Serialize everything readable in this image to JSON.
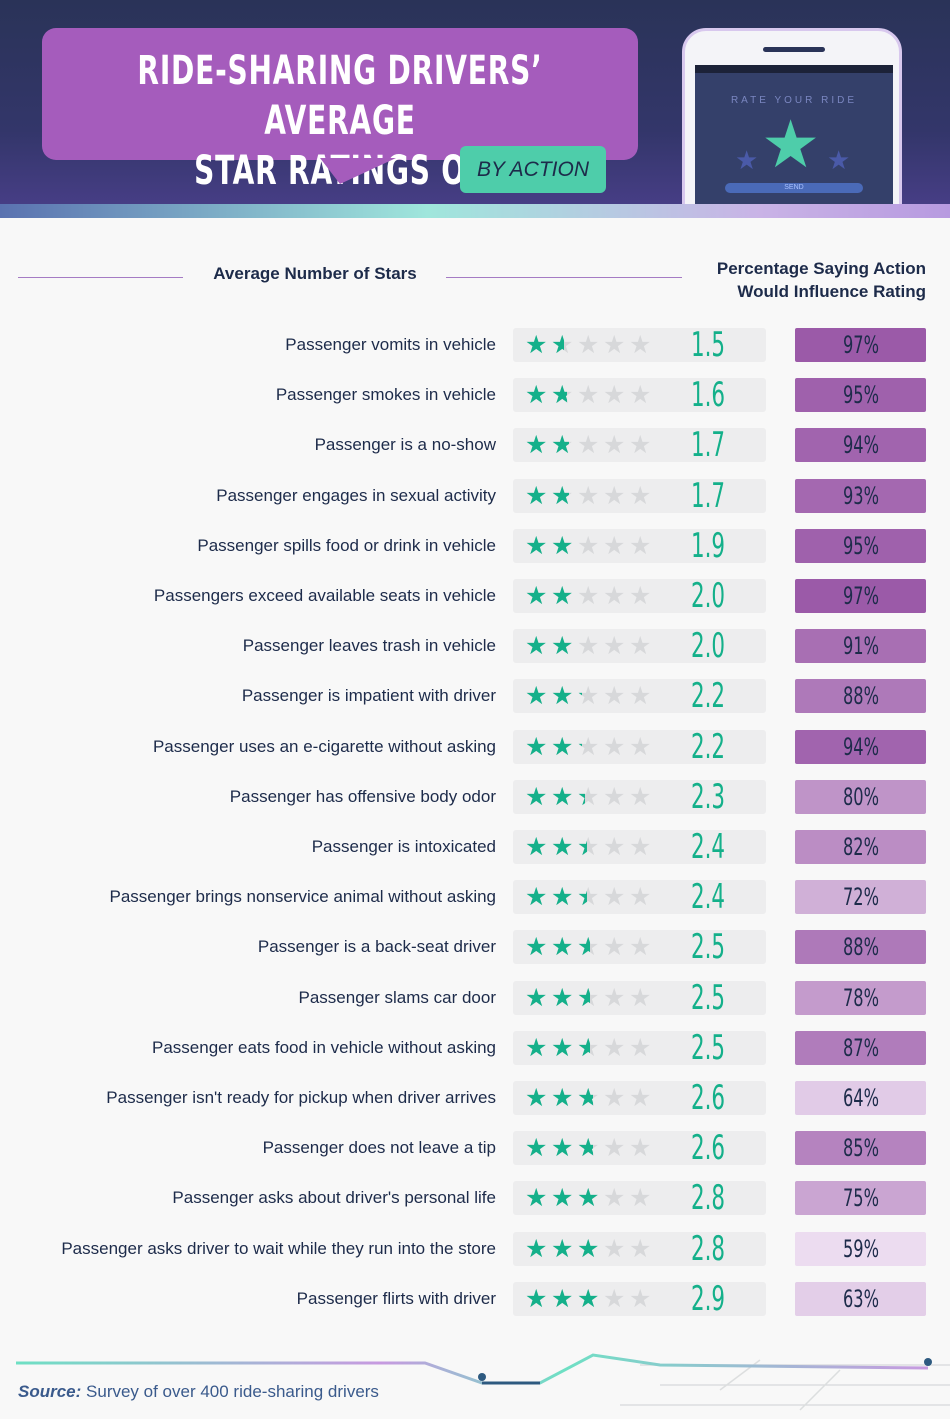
{
  "header": {
    "title_line1": "RIDE-SHARING DRIVERS’ AVERAGE",
    "title_line2": "STAR RATINGS OF PASSENGERS",
    "subtitle": "BY ACTION",
    "phone_label": "RATE YOUR RIDE",
    "phone_button": "SEND"
  },
  "colors": {
    "star_fill": "#14b08a",
    "star_empty": "#d7d8da",
    "pct_high": "#9b5aa8",
    "pct_low": "#ecdcf0"
  },
  "chart_data": {
    "type": "table",
    "columns": [
      "Average Number of Stars",
      "Percentage Saying Action Would Influence Rating"
    ],
    "col2_line1": "Percentage Saying Action",
    "col2_line2": "Would Influence Rating",
    "max_stars": 5,
    "rows": [
      {
        "action": "Passenger vomits in vehicle",
        "stars": "1.5",
        "percent": "97%"
      },
      {
        "action": "Passenger smokes in vehicle",
        "stars": "1.6",
        "percent": "95%"
      },
      {
        "action": "Passenger is a no-show",
        "stars": "1.7",
        "percent": "94%"
      },
      {
        "action": "Passenger engages in sexual activity",
        "stars": "1.7",
        "percent": "93%"
      },
      {
        "action": "Passenger spills food or drink in vehicle",
        "stars": "1.9",
        "percent": "95%"
      },
      {
        "action": "Passengers exceed available seats in vehicle",
        "stars": "2.0",
        "percent": "97%"
      },
      {
        "action": "Passenger leaves trash in vehicle",
        "stars": "2.0",
        "percent": "91%"
      },
      {
        "action": "Passenger is impatient with driver",
        "stars": "2.2",
        "percent": "88%"
      },
      {
        "action": "Passenger uses an e-cigarette without asking",
        "stars": "2.2",
        "percent": "94%"
      },
      {
        "action": "Passenger has offensive body odor",
        "stars": "2.3",
        "percent": "80%"
      },
      {
        "action": "Passenger is intoxicated",
        "stars": "2.4",
        "percent": "82%"
      },
      {
        "action": "Passenger brings nonservice animal without asking",
        "stars": "2.4",
        "percent": "72%"
      },
      {
        "action": "Passenger is a back-seat driver",
        "stars": "2.5",
        "percent": "88%"
      },
      {
        "action": "Passenger slams car door",
        "stars": "2.5",
        "percent": "78%"
      },
      {
        "action": "Passenger eats food in vehicle without asking",
        "stars": "2.5",
        "percent": "87%"
      },
      {
        "action": "Passenger isn't ready for pickup when driver arrives",
        "stars": "2.6",
        "percent": "64%"
      },
      {
        "action": "Passenger does not leave a tip",
        "stars": "2.6",
        "percent": "85%"
      },
      {
        "action": "Passenger asks about driver's personal life",
        "stars": "2.8",
        "percent": "75%"
      },
      {
        "action": "Passenger asks driver to wait while they run into the store",
        "stars": "2.8",
        "percent": "59%"
      },
      {
        "action": "Passenger flirts with driver",
        "stars": "2.9",
        "percent": "63%"
      }
    ]
  },
  "footer": {
    "source_label": "Source:",
    "source_text": " Survey of over 400 ride-sharing drivers"
  }
}
